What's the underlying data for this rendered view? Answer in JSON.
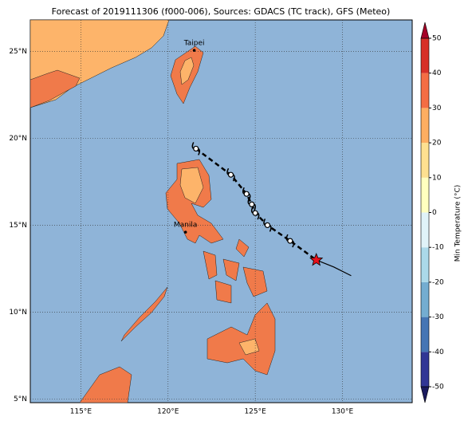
{
  "title": "Forecast of 2019111306 (f000-006), Sources: GDACS (TC track), GFS (Meteo)",
  "map": {
    "lonlim": [
      112.1,
      134.0
    ],
    "latlim": [
      4.8,
      26.8
    ],
    "xticks": [
      {
        "value": 115,
        "label": "115°E"
      },
      {
        "value": 120,
        "label": "120°E"
      },
      {
        "value": 125,
        "label": "125°E"
      },
      {
        "value": 130,
        "label": "130°E"
      }
    ],
    "yticks": [
      {
        "value": 5,
        "label": "5°N"
      },
      {
        "value": 10,
        "label": "10°N"
      },
      {
        "value": 15,
        "label": "15°N"
      },
      {
        "value": 20,
        "label": "20°N"
      },
      {
        "value": 25,
        "label": "25°N"
      }
    ],
    "cities": [
      {
        "name": "Taipei",
        "lon": 121.5,
        "lat": 25.05
      },
      {
        "name": "Manila",
        "lon": 121.0,
        "lat": 14.6
      }
    ],
    "forecast_track": {
      "lon": [
        121.6,
        123.6,
        124.5,
        124.8,
        125.0,
        125.7,
        127.0
      ],
      "lat": [
        19.4,
        17.9,
        16.8,
        16.2,
        15.7,
        15.0,
        14.1
      ]
    },
    "current_position": {
      "lon": 128.5,
      "lat": 13.0,
      "color": "#e8101a"
    },
    "past_track": {
      "lon": [
        128.5,
        129.5,
        130.5
      ],
      "lat": [
        13.0,
        12.6,
        12.1
      ]
    }
  },
  "colorbar": {
    "label": "Min Temperature (°C)",
    "lim": [
      -50,
      50
    ],
    "ticks": [
      -50,
      -40,
      -30,
      -20,
      -10,
      0,
      10,
      20,
      30,
      40,
      50
    ],
    "colors": [
      "#313695",
      "#4575b4",
      "#74add1",
      "#abd9e9",
      "#e0f3f8",
      "#ffffbf",
      "#fee090",
      "#fdae61",
      "#f46d43",
      "#d73027"
    ],
    "under_color": "#1a1a5e",
    "over_color": "#a50026"
  }
}
